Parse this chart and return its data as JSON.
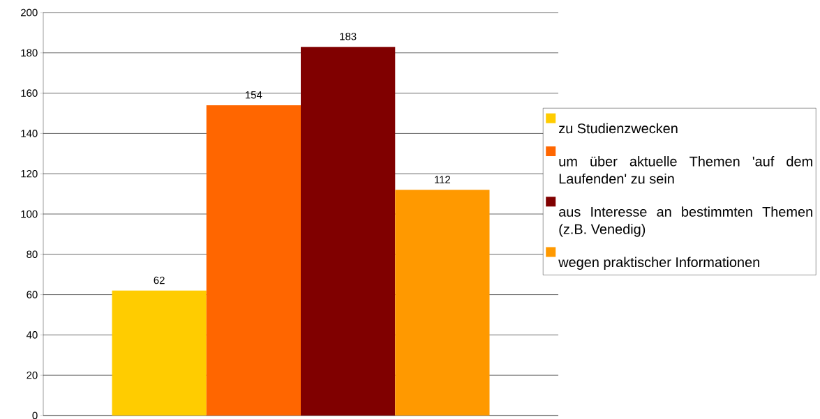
{
  "chart_data": {
    "type": "bar",
    "categories": [
      null
    ],
    "series": [
      {
        "name": "zu Studienzwecken",
        "color": "#ffcc00",
        "values": [
          62
        ]
      },
      {
        "name": "um über aktuelle Themen 'auf dem Laufenden' zu sein",
        "color": "#ff6600",
        "values": [
          154
        ]
      },
      {
        "name": "aus Interesse an bestimmten Themen (z.B. Venedig)",
        "color": "#800000",
        "values": [
          183
        ]
      },
      {
        "name": "wegen praktischer Informationen",
        "color": "#ff9900",
        "values": [
          112
        ]
      }
    ],
    "ylim": [
      0,
      200
    ],
    "yticks": [
      0,
      20,
      40,
      60,
      80,
      100,
      120,
      140,
      160,
      180,
      200
    ],
    "grid": "y",
    "legend": "right",
    "data_labels": true
  }
}
